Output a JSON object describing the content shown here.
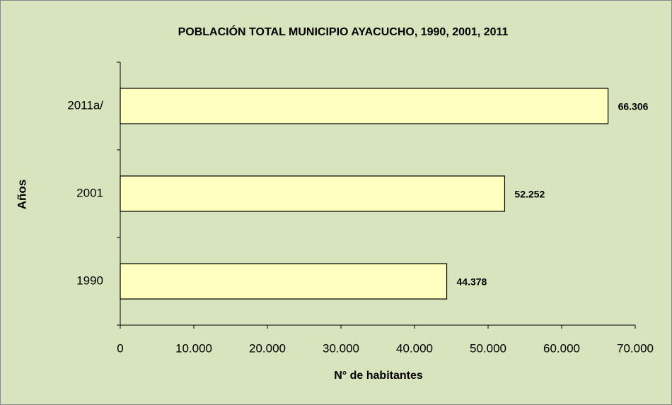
{
  "chart_data": {
    "type": "bar",
    "orientation": "horizontal",
    "title": "POBLACIÓN TOTAL MUNICIPIO AYACUCHO, 1990, 2001, 2011",
    "xlabel": "N° de habitantes",
    "ylabel": "Años",
    "categories": [
      "1990",
      "2001",
      "2011a/"
    ],
    "values": [
      44378,
      52252,
      66306
    ],
    "value_labels": [
      "44.378",
      "52.252",
      "66.306"
    ],
    "color": "#ffffc0",
    "xlim": [
      0,
      70000
    ],
    "xticks": [
      0,
      {
        "value": 10000,
        "label": "10.000"
      },
      {
        "value": 20000,
        "label": "20.000"
      },
      {
        "value": 30000,
        "label": "30.000"
      },
      {
        "value": 40000,
        "label": "40.000"
      },
      {
        "value": 50000,
        "label": "50.000"
      },
      {
        "value": 60000,
        "label": "60.000"
      },
      {
        "value": 70000,
        "label": "70.000"
      }
    ],
    "grid": false
  }
}
